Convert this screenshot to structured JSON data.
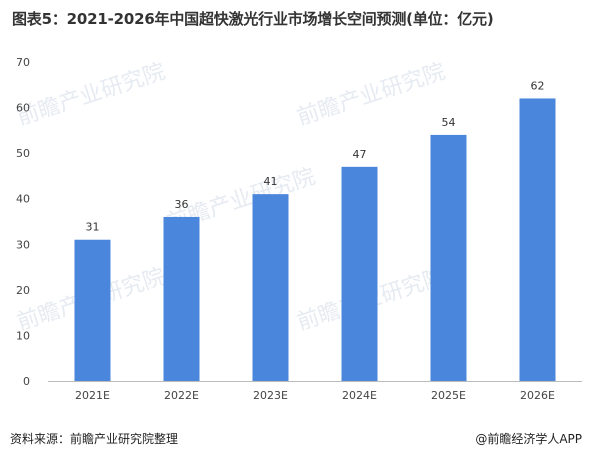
{
  "title": "图表5：2021-2026年中国超快激光行业市场增长空间预测(单位：亿元)",
  "source": "资料来源：前瞻产业研究院整理",
  "brand": "@前瞻经济学人APP",
  "watermark_text": "前瞻产业研究院",
  "colors": {
    "bar": "#4a86dc",
    "axis": "#bbbbbb",
    "text": "#333333"
  },
  "chart_data": {
    "type": "bar",
    "title": "图表5：2021-2026年中国超快激光行业市场增长空间预测(单位：亿元)",
    "categories": [
      "2021E",
      "2022E",
      "2023E",
      "2024E",
      "2025E",
      "2026E"
    ],
    "values": [
      31,
      36,
      41,
      47,
      54,
      62
    ],
    "ylim": [
      0,
      70
    ],
    "yticks": [
      0,
      10,
      20,
      30,
      40,
      50,
      60,
      70
    ],
    "xlabel": "",
    "ylabel": "",
    "grid": false,
    "data_labels": true
  }
}
